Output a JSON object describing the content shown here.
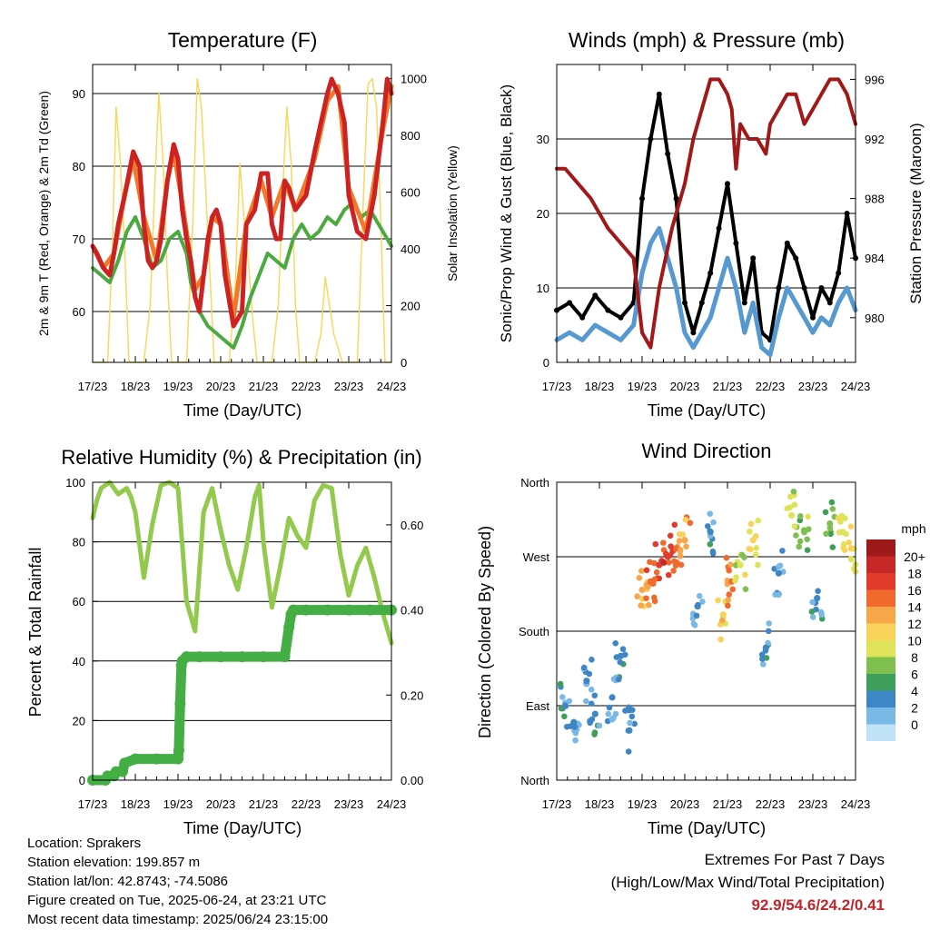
{
  "colors": {
    "temp_red": "#cc2222",
    "temp_orange": "#f07a2a",
    "dewpoint_green": "#4aaa40",
    "solar_yellow": "#f8d860",
    "wind_blue": "#5599d0",
    "gust_black": "#000000",
    "pressure_maroon": "#a01818",
    "rh_lightgreen": "#93c94c",
    "precip_green": "#44ad44"
  },
  "time_ticks": [
    "17/23",
    "18/23",
    "19/23",
    "20/23",
    "21/23",
    "22/23",
    "23/23",
    "24/23"
  ],
  "chart_data": [
    {
      "id": "temperature",
      "type": "line",
      "title": "Temperature (F)",
      "xlabel": "Time (Day/UTC)",
      "ylabel": "2m & 9m T (Red, Orange) & 2m Td (Green)",
      "ylabel_right": "Solar Insolation (Yellow)",
      "x_unit": "days since 17/23",
      "ylim": [
        53,
        94
      ],
      "yticks": [
        60,
        70,
        80,
        90
      ],
      "ylim_right": [
        0,
        1050
      ],
      "yticks_right": [
        0,
        200,
        400,
        600,
        800,
        1000
      ],
      "series": [
        {
          "name": "2m T",
          "color": "#cc2222",
          "x": [
            0,
            0.1,
            0.25,
            0.4,
            0.5,
            0.6,
            0.75,
            0.95,
            1.1,
            1.2,
            1.3,
            1.4,
            1.5,
            1.6,
            1.75,
            1.9,
            2.0,
            2.1,
            2.2,
            2.3,
            2.4,
            2.5,
            2.6,
            2.7,
            2.8,
            2.9,
            3.0,
            3.1,
            3.3,
            3.5,
            3.6,
            3.8,
            3.95,
            4.1,
            4.2,
            4.3,
            4.4,
            4.5,
            4.6,
            4.75,
            5.0,
            5.2,
            5.35,
            5.5,
            5.6,
            5.75,
            5.9,
            6.0,
            6.2,
            6.4,
            6.6,
            6.8,
            6.9,
            7.0
          ],
          "y": [
            69,
            68,
            66,
            65,
            68,
            72,
            76,
            82,
            80,
            72,
            67,
            66,
            67,
            70,
            78,
            83,
            81,
            74,
            70,
            67,
            62,
            60,
            65,
            70,
            73,
            74,
            72,
            65,
            58,
            60,
            72,
            74,
            79,
            79,
            72,
            70,
            70,
            78,
            77,
            74,
            76,
            82,
            86,
            90,
            92,
            90,
            86,
            76,
            71,
            70,
            76,
            86,
            92,
            90
          ]
        },
        {
          "name": "9m T",
          "color": "#f07a2a",
          "x": [
            0,
            0.25,
            0.5,
            0.75,
            0.95,
            1.2,
            1.5,
            1.75,
            1.9,
            2.1,
            2.4,
            2.6,
            2.8,
            3.0,
            3.3,
            3.6,
            3.95,
            4.2,
            4.5,
            4.75,
            5.2,
            5.5,
            5.75,
            6.0,
            6.4,
            6.8,
            7.0
          ],
          "y": [
            69,
            66,
            68,
            76,
            81,
            73,
            67,
            78,
            82,
            75,
            63,
            65,
            73,
            72,
            59,
            72,
            78,
            73,
            78,
            74,
            81,
            89,
            91,
            77,
            71,
            85,
            91
          ]
        },
        {
          "name": "2m Td",
          "color": "#4aaa40",
          "x": [
            0,
            0.2,
            0.4,
            0.6,
            0.8,
            1.0,
            1.2,
            1.4,
            1.6,
            1.8,
            2.0,
            2.2,
            2.3,
            2.5,
            2.7,
            2.9,
            3.1,
            3.3,
            3.5,
            3.7,
            3.9,
            4.1,
            4.3,
            4.5,
            4.7,
            4.9,
            5.1,
            5.3,
            5.5,
            5.7,
            5.9,
            6.1,
            6.3,
            6.5,
            6.7,
            6.9,
            7.0
          ],
          "y": [
            66,
            65,
            64,
            67,
            71,
            73,
            70,
            66,
            67,
            70,
            71,
            68,
            64,
            60,
            58,
            57,
            56,
            55,
            58,
            62,
            65,
            68,
            67,
            66,
            70,
            72,
            70,
            71,
            73,
            72,
            74,
            75,
            73,
            74,
            72,
            70,
            69
          ]
        },
        {
          "name": "Solar Insolation",
          "axis": "right",
          "color": "#f8d860",
          "x": [
            0,
            0.35,
            0.45,
            0.55,
            0.65,
            0.75,
            0.85,
            1.2,
            1.35,
            1.45,
            1.55,
            1.65,
            1.75,
            1.85,
            2.2,
            2.35,
            2.45,
            2.55,
            2.65,
            2.75,
            2.85,
            3.2,
            3.35,
            3.45,
            3.55,
            3.65,
            3.75,
            3.85,
            4.2,
            4.35,
            4.45,
            4.55,
            4.65,
            4.75,
            4.85,
            5.2,
            5.35,
            5.45,
            5.55,
            5.65,
            5.75,
            5.85,
            6.2,
            6.35,
            6.45,
            6.55,
            6.65,
            6.75,
            6.85,
            7.0
          ],
          "y": [
            0,
            0,
            350,
            900,
            700,
            400,
            0,
            0,
            200,
            600,
            950,
            700,
            300,
            0,
            0,
            500,
            1000,
            900,
            600,
            300,
            0,
            0,
            300,
            700,
            500,
            350,
            150,
            0,
            0,
            200,
            600,
            900,
            700,
            200,
            0,
            0,
            100,
            300,
            200,
            100,
            50,
            0,
            0,
            600,
            980,
            1000,
            900,
            500,
            0,
            0
          ]
        }
      ]
    },
    {
      "id": "winds_pressure",
      "type": "line",
      "title": "Winds (mph) & Pressure (mb)",
      "xlabel": "Time (Day/UTC)",
      "ylabel": "Sonic/Prop Wind & Gust (Blue, Black)",
      "ylabel_right": "Station Pressure (Maroon)",
      "x_unit": "days since 17/23",
      "ylim": [
        0,
        40
      ],
      "yticks": [
        0,
        10,
        20,
        30
      ],
      "ylim_right": [
        977,
        997
      ],
      "yticks_right": [
        980,
        984,
        988,
        992,
        996
      ],
      "series": [
        {
          "name": "Wind",
          "color": "#5599d0",
          "x": [
            0,
            0.3,
            0.6,
            0.9,
            1.2,
            1.5,
            1.8,
            2.0,
            2.2,
            2.4,
            2.6,
            2.8,
            3.0,
            3.2,
            3.4,
            3.6,
            3.8,
            4.0,
            4.2,
            4.4,
            4.6,
            4.8,
            5.0,
            5.2,
            5.4,
            5.6,
            5.8,
            6.0,
            6.2,
            6.4,
            6.6,
            6.8,
            7.0
          ],
          "y": [
            3,
            4,
            3,
            5,
            4,
            3,
            5,
            12,
            16,
            18,
            14,
            10,
            4,
            2,
            4,
            6,
            10,
            14,
            10,
            4,
            8,
            2,
            1,
            6,
            10,
            8,
            6,
            4,
            6,
            5,
            8,
            10,
            7
          ]
        },
        {
          "name": "Gust",
          "color": "#000000",
          "x": [
            0,
            0.3,
            0.6,
            0.9,
            1.2,
            1.5,
            1.8,
            2.0,
            2.2,
            2.4,
            2.6,
            2.8,
            3.0,
            3.2,
            3.4,
            3.6,
            3.8,
            4.0,
            4.2,
            4.4,
            4.6,
            4.8,
            5.0,
            5.2,
            5.4,
            5.6,
            5.8,
            6.0,
            6.2,
            6.4,
            6.6,
            6.8,
            7.0
          ],
          "y": [
            7,
            8,
            6,
            9,
            7,
            6,
            8,
            22,
            30,
            36,
            28,
            22,
            8,
            4,
            8,
            12,
            18,
            24,
            16,
            8,
            14,
            4,
            3,
            10,
            16,
            14,
            10,
            6,
            10,
            8,
            12,
            20,
            14
          ]
        },
        {
          "name": "Station Pressure",
          "axis": "right",
          "color": "#a01818",
          "x": [
            0,
            0.2,
            0.5,
            0.8,
            1.0,
            1.2,
            1.5,
            1.8,
            2.0,
            2.2,
            2.4,
            2.7,
            3.0,
            3.2,
            3.4,
            3.6,
            3.8,
            4.0,
            4.1,
            4.2,
            4.3,
            4.5,
            4.7,
            4.9,
            5.0,
            5.2,
            5.4,
            5.6,
            5.8,
            6.0,
            6.2,
            6.4,
            6.6,
            6.8,
            7.0
          ],
          "y": [
            990,
            990,
            989,
            988,
            987,
            986,
            985,
            984,
            979,
            978,
            982,
            986,
            989,
            992,
            994,
            996,
            996,
            995,
            994,
            990,
            993,
            992,
            992,
            991,
            993,
            994,
            995,
            995,
            993,
            994,
            995,
            996,
            996,
            995,
            993
          ]
        }
      ]
    },
    {
      "id": "rh_precip",
      "type": "line",
      "title": "Relative Humidity (%) & Precipitation (in)",
      "xlabel": "Time (Day/UTC)",
      "ylabel": "Percent & Total Rainfall",
      "x_unit": "days since 17/23",
      "ylim": [
        0,
        100
      ],
      "yticks": [
        0,
        20,
        40,
        60,
        80,
        100
      ],
      "ylim_right": [
        0,
        0.7
      ],
      "yticks_right": [
        "0.00",
        "0.20",
        "0.40",
        "0.60"
      ],
      "series": [
        {
          "name": "RH",
          "color": "#93c94c",
          "x": [
            0,
            0.1,
            0.2,
            0.4,
            0.6,
            0.8,
            0.9,
            1.0,
            1.2,
            1.4,
            1.6,
            1.8,
            2.0,
            2.2,
            2.4,
            2.6,
            2.8,
            3.0,
            3.2,
            3.4,
            3.6,
            3.8,
            3.9,
            4.0,
            4.2,
            4.4,
            4.6,
            4.8,
            5.0,
            5.2,
            5.4,
            5.6,
            5.8,
            6.0,
            6.2,
            6.4,
            6.6,
            6.8,
            7.0
          ],
          "y": [
            88,
            94,
            98,
            100,
            96,
            98,
            95,
            90,
            68,
            86,
            99,
            100,
            98,
            60,
            50,
            90,
            98,
            84,
            72,
            64,
            78,
            95,
            99,
            80,
            58,
            72,
            88,
            82,
            78,
            94,
            99,
            98,
            76,
            62,
            72,
            78,
            68,
            56,
            46
          ]
        },
        {
          "name": "Total Rainfall",
          "axis": "right",
          "color": "#44ad44",
          "x": [
            0,
            0.3,
            0.35,
            0.5,
            0.55,
            0.7,
            0.75,
            1.0,
            1.5,
            2.0,
            2.02,
            2.05,
            2.08,
            2.1,
            2.2,
            2.5,
            3.0,
            3.5,
            4.0,
            4.5,
            4.6,
            4.65,
            4.7,
            5.0,
            5.5,
            6.0,
            6.5,
            7.0
          ],
          "y": [
            0,
            0,
            0.01,
            0.01,
            0.02,
            0.02,
            0.04,
            0.05,
            0.05,
            0.05,
            0.07,
            0.18,
            0.27,
            0.28,
            0.29,
            0.29,
            0.29,
            0.29,
            0.29,
            0.29,
            0.36,
            0.39,
            0.4,
            0.4,
            0.4,
            0.4,
            0.4,
            0.4
          ]
        }
      ]
    },
    {
      "id": "wind_direction",
      "type": "scatter",
      "title": "Wind Direction",
      "xlabel": "Time (Day/UTC)",
      "ylabel": "Direction (Colored By Speed)",
      "x_unit": "days since 17/23",
      "ylim": [
        0,
        360
      ],
      "yticks": [
        "North",
        "East",
        "South",
        "West",
        "North"
      ],
      "colorbar": {
        "title": "mph",
        "labels": [
          "20+",
          "18",
          "16",
          "14",
          "12",
          "10",
          "8",
          "6",
          "4",
          "2",
          "0"
        ],
        "colors": [
          "#9e1a1a",
          "#c62828",
          "#e03b2b",
          "#f06a2e",
          "#f8a64a",
          "#f9d25a",
          "#dfe35a",
          "#7fbf4f",
          "#3f9f5a",
          "#3f86c6",
          "#7ab8e6",
          "#bfe2f6"
        ]
      },
      "clusters": [
        {
          "x": 0.2,
          "dir": 90,
          "speed": 4
        },
        {
          "x": 0.4,
          "dir": 70,
          "speed": 3
        },
        {
          "x": 0.7,
          "dir": 120,
          "speed": 3
        },
        {
          "x": 0.9,
          "dir": 80,
          "speed": 4
        },
        {
          "x": 1.3,
          "dir": 100,
          "speed": 3
        },
        {
          "x": 1.5,
          "dir": 150,
          "speed": 4
        },
        {
          "x": 1.7,
          "dir": 60,
          "speed": 3
        },
        {
          "x": 2.0,
          "dir": 230,
          "speed": 14
        },
        {
          "x": 2.2,
          "dir": 240,
          "speed": 16
        },
        {
          "x": 2.4,
          "dir": 260,
          "speed": 17
        },
        {
          "x": 2.6,
          "dir": 270,
          "speed": 18
        },
        {
          "x": 2.8,
          "dir": 280,
          "speed": 16
        },
        {
          "x": 3.0,
          "dir": 290,
          "speed": 14
        },
        {
          "x": 3.3,
          "dir": 210,
          "speed": 3
        },
        {
          "x": 3.6,
          "dir": 300,
          "speed": 4
        },
        {
          "x": 3.9,
          "dir": 200,
          "speed": 12
        },
        {
          "x": 4.1,
          "dir": 240,
          "speed": 15
        },
        {
          "x": 4.3,
          "dir": 260,
          "speed": 10
        },
        {
          "x": 4.6,
          "dir": 290,
          "speed": 11
        },
        {
          "x": 4.9,
          "dir": 160,
          "speed": 4
        },
        {
          "x": 5.2,
          "dir": 250,
          "speed": 4
        },
        {
          "x": 5.5,
          "dir": 320,
          "speed": 9
        },
        {
          "x": 5.8,
          "dir": 300,
          "speed": 8
        },
        {
          "x": 6.1,
          "dir": 220,
          "speed": 4
        },
        {
          "x": 6.4,
          "dir": 310,
          "speed": 7
        },
        {
          "x": 6.7,
          "dir": 300,
          "speed": 10
        },
        {
          "x": 6.9,
          "dir": 280,
          "speed": 11
        }
      ]
    }
  ],
  "info": {
    "location": "Location: Sprakers",
    "elevation": "Station elevation: 199.857 m",
    "latlon": "Station lat/lon: 42.8743; -74.5086",
    "created": "Figure created on Tue, 2025-06-24, at 23:21 UTC",
    "recent": "Most recent data timestamp: 2025/06/24 23:15:00"
  },
  "extremes": {
    "title": "Extremes For Past 7 Days",
    "subtitle": "(High/Low/Max Wind/Total Precipitation)",
    "values": "92.9/54.6/24.2/0.41"
  }
}
